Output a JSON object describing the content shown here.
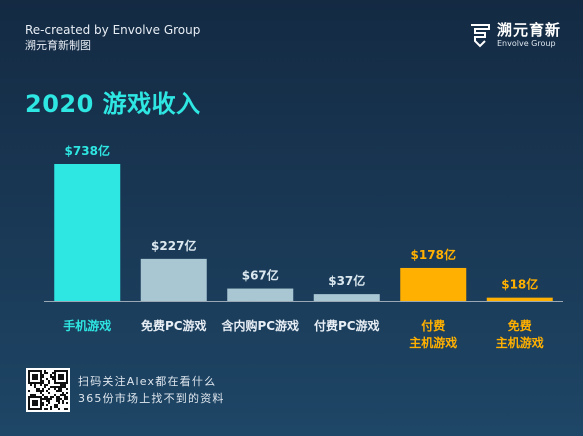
{
  "credit": {
    "line1": "Re-created by Envolve Group",
    "line2": "溯元育新制图"
  },
  "logo": {
    "icon": "envolve-logo-icon",
    "name_cn": "溯元育新",
    "name_en": "Envolve Group"
  },
  "colors": {
    "background_top": "#142a43",
    "background_bottom": "#1e4666",
    "title": "#2ee6e2",
    "highlight": "#2ee6e2",
    "neutral": "#a9c6d3",
    "console": "#ffb000",
    "axis": "#9aa8b6"
  },
  "chart_data": {
    "type": "bar",
    "title": "2020 游戏收入",
    "categories": [
      [
        "手机游戏"
      ],
      [
        "免费PC游戏"
      ],
      [
        "含内购PC游戏"
      ],
      [
        "付费PC游戏"
      ],
      [
        "付费",
        "主机游戏"
      ],
      [
        "免费",
        "主机游戏"
      ]
    ],
    "values": [
      738,
      227,
      67,
      37,
      178,
      18
    ],
    "value_labels": [
      "$738亿",
      "$227亿",
      "$67亿",
      "$37亿",
      "$178亿",
      "$18亿"
    ],
    "bar_color_groups": [
      "highlight",
      "neutral",
      "neutral",
      "neutral",
      "console",
      "console"
    ],
    "ylim": [
      0,
      738
    ],
    "grid": false
  },
  "footer": {
    "qr_icon": "qr-code-icon",
    "line1": "扫码关注Alex都在看什么",
    "line2": "365份市场上找不到的资料"
  }
}
